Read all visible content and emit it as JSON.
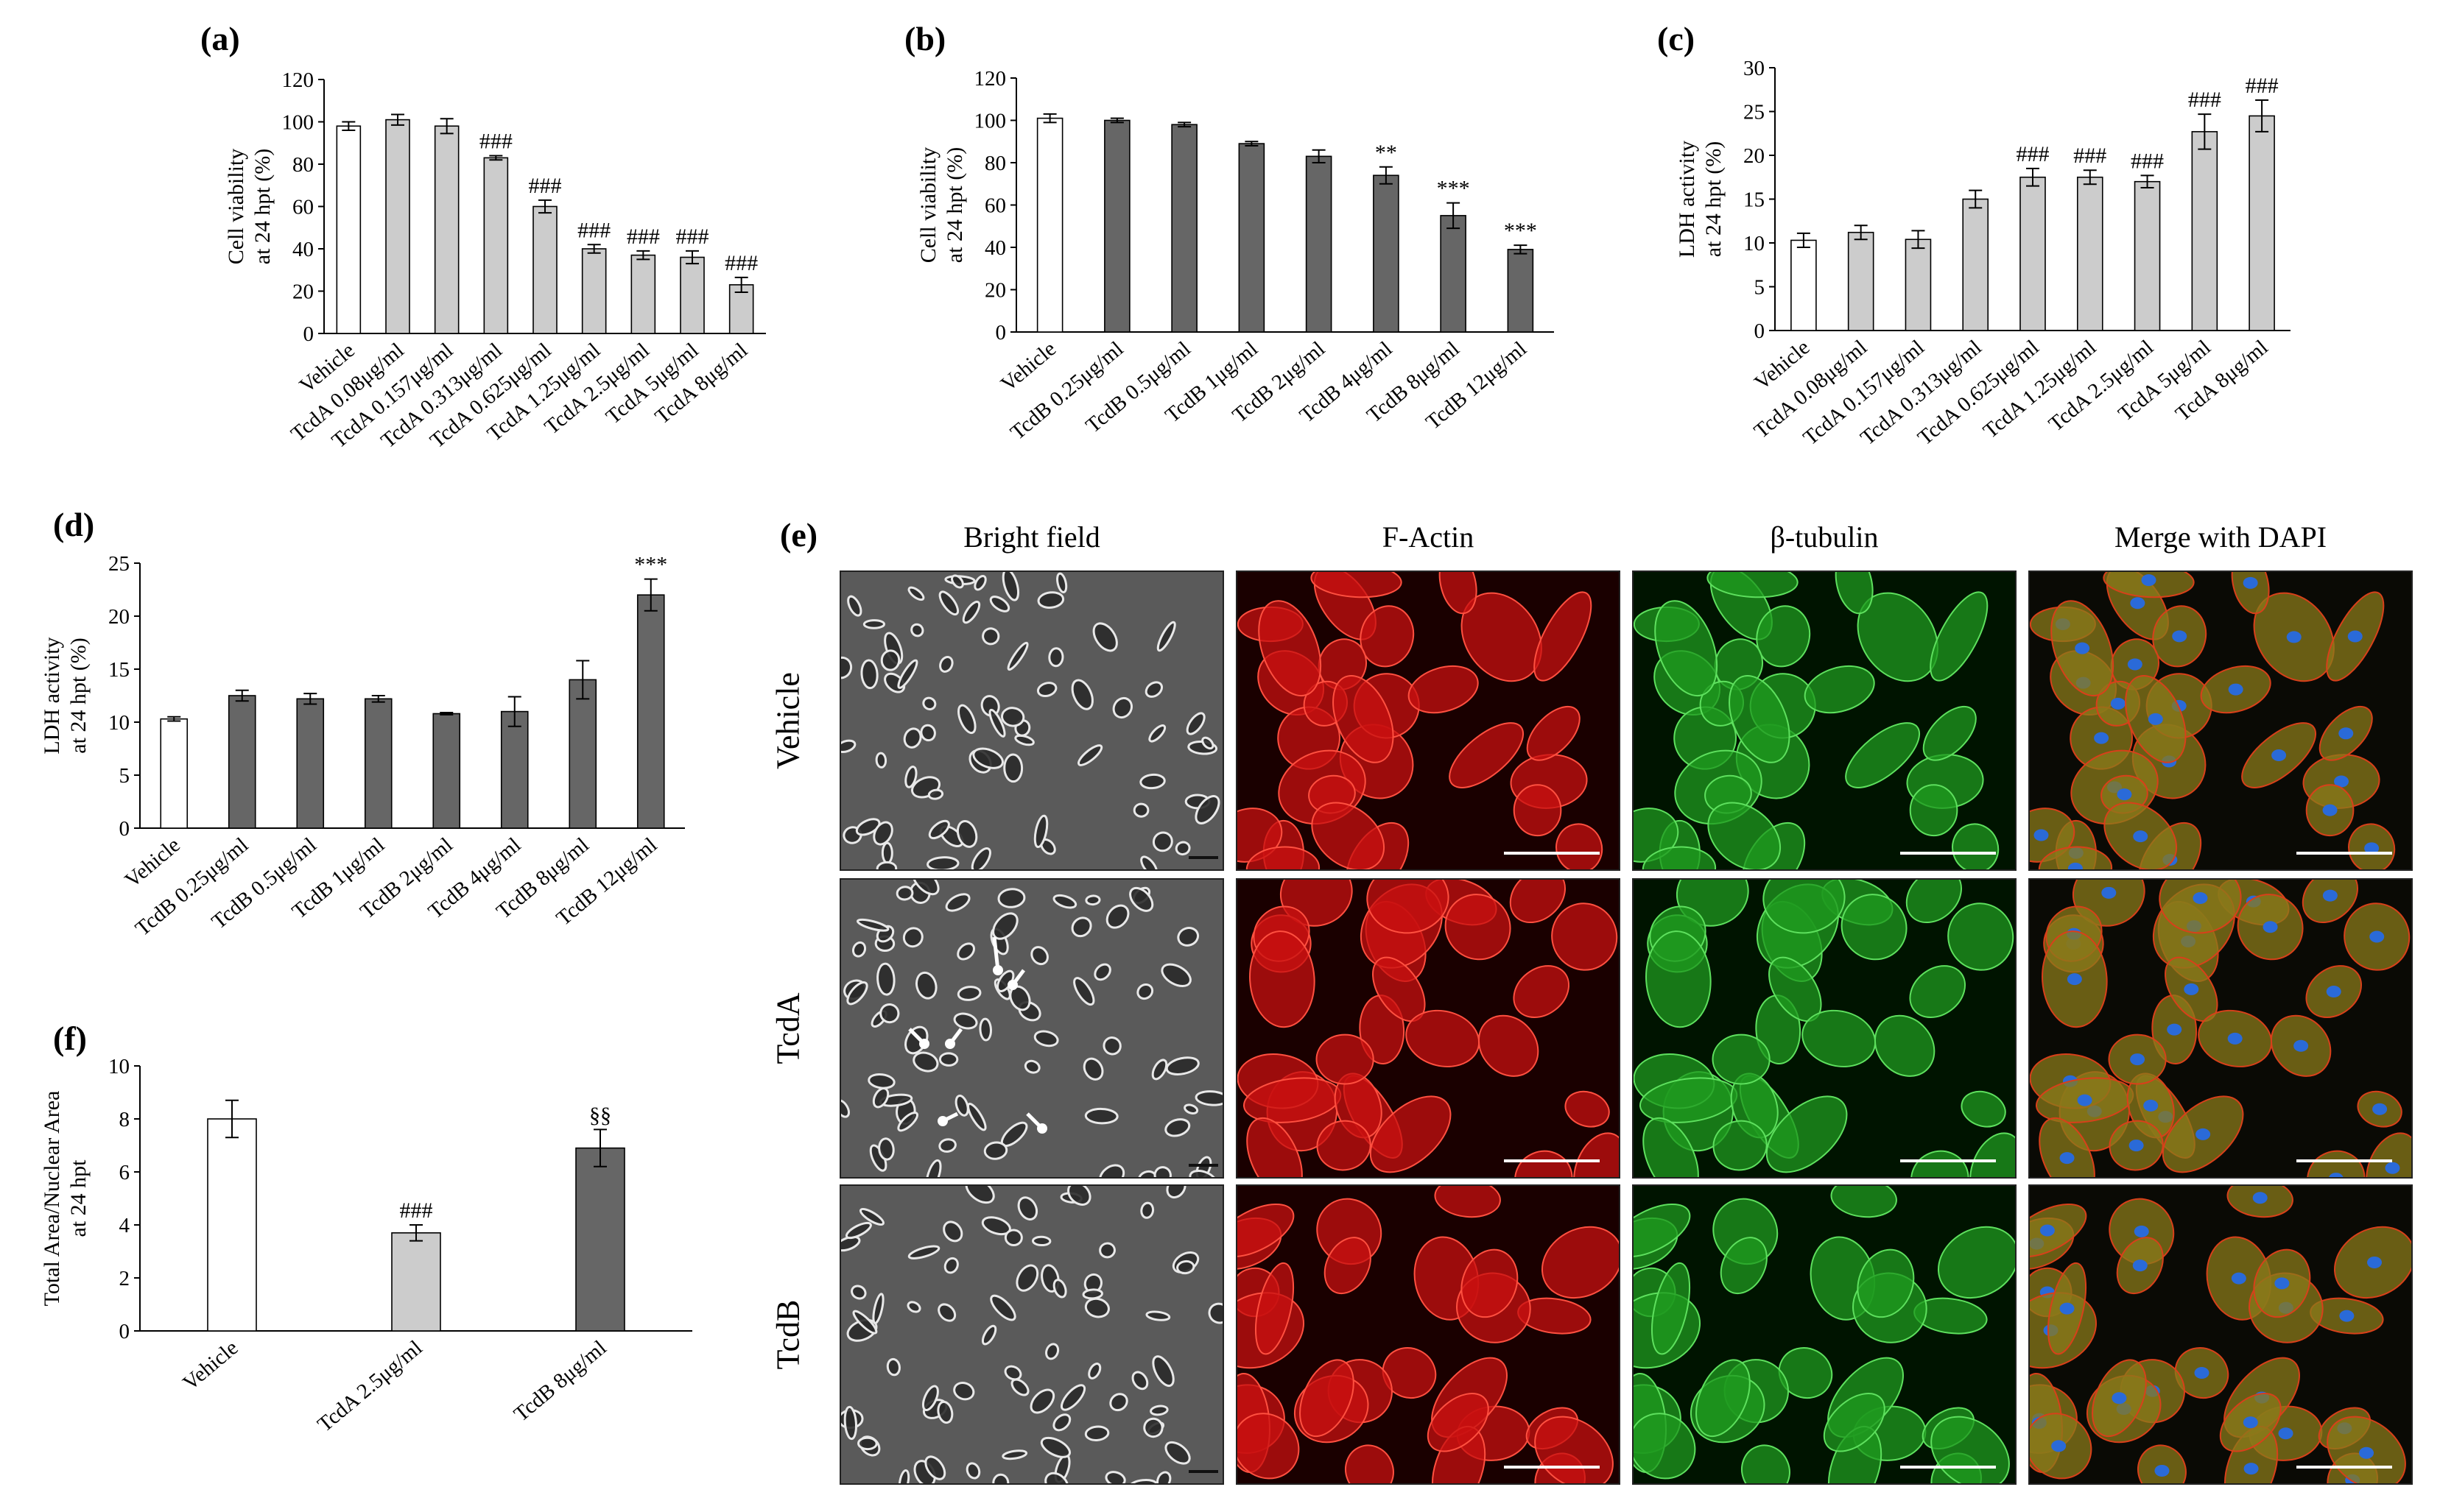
{
  "charts": [
    {
      "id": "a",
      "panel_label": "(a)",
      "ylabel_lines": [
        "Cell viability",
        "at 24 hpt (%)"
      ],
      "ylim": [
        0,
        120
      ],
      "yticks": [
        0,
        20,
        40,
        60,
        80,
        100,
        120
      ],
      "categories": [
        "Vehicle",
        "TcdA 0.08μg/ml",
        "TcdA 0.157μg/ml",
        "TcdA 0.313μg/ml",
        "TcdA 0.625μg/ml",
        "TcdA 1.25μg/ml",
        "TcdA 2.5μg/ml",
        "TcdA 5μg/ml",
        "TcdA 8μg/ml"
      ],
      "values": [
        98,
        101,
        98,
        83,
        60,
        40,
        37,
        36,
        23
      ],
      "errors": [
        2,
        2.5,
        3.5,
        1,
        3,
        2,
        2,
        3,
        3.5
      ],
      "annotations": [
        "",
        "",
        "",
        "###",
        "###",
        "###",
        "###",
        "###",
        "###"
      ],
      "bar_colors": [
        "#ffffff",
        "#cccccc",
        "#cccccc",
        "#cccccc",
        "#cccccc",
        "#cccccc",
        "#cccccc",
        "#cccccc",
        "#cccccc"
      ]
    },
    {
      "id": "b",
      "panel_label": "(b)",
      "ylabel_lines": [
        "Cell viability",
        "at 24 hpt (%)"
      ],
      "ylim": [
        0,
        120
      ],
      "yticks": [
        0,
        20,
        40,
        60,
        80,
        100,
        120
      ],
      "categories": [
        "Vehicle",
        "TcdB 0.25μg/ml",
        "TcdB 0.5μg/ml",
        "TcdB 1μg/ml",
        "TcdB 2μg/ml",
        "TcdB 4μg/ml",
        "TcdB 8μg/ml",
        "TcdB 12μg/ml"
      ],
      "values": [
        101,
        100,
        98,
        89,
        83,
        74,
        55,
        39
      ],
      "errors": [
        2,
        1,
        1,
        1,
        3,
        4,
        6,
        2
      ],
      "annotations": [
        "",
        "",
        "",
        "",
        "",
        "**",
        "***",
        "***"
      ],
      "bar_colors": [
        "#ffffff",
        "#666666",
        "#666666",
        "#666666",
        "#666666",
        "#666666",
        "#666666",
        "#666666"
      ]
    },
    {
      "id": "c",
      "panel_label": "(c)",
      "ylabel_lines": [
        "LDH activity",
        "at 24 hpt (%)"
      ],
      "ylim": [
        0,
        30
      ],
      "yticks": [
        0,
        5,
        10,
        15,
        20,
        25,
        30
      ],
      "categories": [
        "Vehicle",
        "TcdA 0.08μg/ml",
        "TcdA 0.157μg/ml",
        "TcdA 0.313μg/ml",
        "TcdA 0.625μg/ml",
        "TcdA 1.25μg/ml",
        "TcdA 2.5μg/ml",
        "TcdA 5μg/ml",
        "TcdA 8μg/ml"
      ],
      "values": [
        10.3,
        11.2,
        10.4,
        15,
        17.5,
        17.5,
        17,
        22.7,
        24.5
      ],
      "errors": [
        0.8,
        0.8,
        1,
        1,
        1,
        0.8,
        0.7,
        2,
        1.8
      ],
      "annotations": [
        "",
        "",
        "",
        "",
        "###",
        "###",
        "###",
        "###",
        "###"
      ],
      "bar_colors": [
        "#ffffff",
        "#cccccc",
        "#cccccc",
        "#cccccc",
        "#cccccc",
        "#cccccc",
        "#cccccc",
        "#cccccc",
        "#cccccc"
      ]
    },
    {
      "id": "d",
      "panel_label": "(d)",
      "ylabel_lines": [
        "LDH activity",
        "at 24 hpt (%)"
      ],
      "ylim": [
        0,
        25
      ],
      "yticks": [
        0,
        5,
        10,
        15,
        20,
        25
      ],
      "categories": [
        "Vehicle",
        "TcdB 0.25μg/ml",
        "TcdB 0.5μg/ml",
        "TcdB 1μg/ml",
        "TcdB 2μg/ml",
        "TcdB 4μg/ml",
        "TcdB 8μg/ml",
        "TcdB 12μg/ml"
      ],
      "values": [
        10.3,
        12.5,
        12.2,
        12.2,
        10.8,
        11,
        14,
        22
      ],
      "errors": [
        0.2,
        0.5,
        0.5,
        0.3,
        0.1,
        1.4,
        1.8,
        1.5
      ],
      "annotations": [
        "",
        "",
        "",
        "",
        "",
        "",
        "",
        "***"
      ],
      "bar_colors": [
        "#ffffff",
        "#666666",
        "#666666",
        "#666666",
        "#666666",
        "#666666",
        "#666666",
        "#666666"
      ]
    },
    {
      "id": "f",
      "panel_label": "(f)",
      "ylabel_lines": [
        "Total Area/Nuclear Area",
        "at 24 hpt"
      ],
      "ylim": [
        0,
        10
      ],
      "yticks": [
        0,
        2,
        4,
        6,
        8,
        10
      ],
      "categories": [
        "Vehicle",
        "TcdA 2.5μg/ml",
        "TcdB 8μg/ml"
      ],
      "values": [
        8,
        3.7,
        6.9
      ],
      "errors": [
        0.7,
        0.3,
        0.7
      ],
      "annotations": [
        "",
        "###",
        "§§"
      ],
      "bar_colors": [
        "#ffffff",
        "#cccccc",
        "#666666"
      ]
    }
  ],
  "panel_e": {
    "panel_label": "(e)",
    "columns": [
      "Bright field",
      "F-Actin",
      "β-tubulin",
      "Merge with DAPI"
    ],
    "rows": [
      "Vehicle",
      "TcdA",
      "TcdB"
    ]
  }
}
